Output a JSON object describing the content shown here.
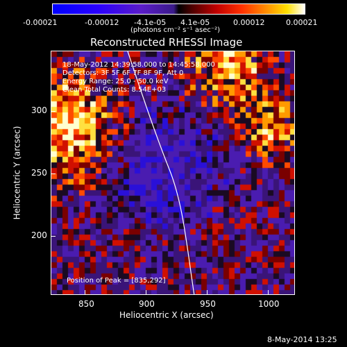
{
  "colorbar": {
    "ticks": [
      "-0.00021",
      "-0.00012",
      "-4.1e-05",
      "4.1e-05",
      "0.00012",
      "0.00021"
    ],
    "units": "(photons cm⁻² s⁻¹ asec⁻²)"
  },
  "title": "Reconstructed RHESSI Image",
  "info": {
    "time": "18-May-2012 14:39:58.000 to 14:45:58.000",
    "detectors": "Detectors: 3F 5F 6F 7F 8F 9F, Att 0",
    "energy": "Energy Range: 25.0 - 50.0 keV",
    "clean": "Clean    Total Counts: 8.54E+03",
    "peak": "Position of Peak = [835,292]"
  },
  "axes": {
    "xlabel": "Heliocentric X (arcsec)",
    "ylabel": "Heliocentric Y (arcsec)",
    "xticks": [
      "850",
      "900",
      "950",
      "1000"
    ],
    "yticks": [
      "300",
      "250",
      "200"
    ]
  },
  "footer": {
    "date": "8-May-2014 13:25"
  },
  "chart_data": {
    "type": "heatmap",
    "title": "Reconstructed RHESSI Image",
    "xlabel": "Heliocentric X (arcsec)",
    "ylabel": "Heliocentric Y (arcsec)",
    "xlim": [
      825,
      1015
    ],
    "ylim": [
      163,
      353
    ],
    "zlim": [
      -0.00021,
      0.00021
    ],
    "peak": [
      835,
      292
    ]
  }
}
